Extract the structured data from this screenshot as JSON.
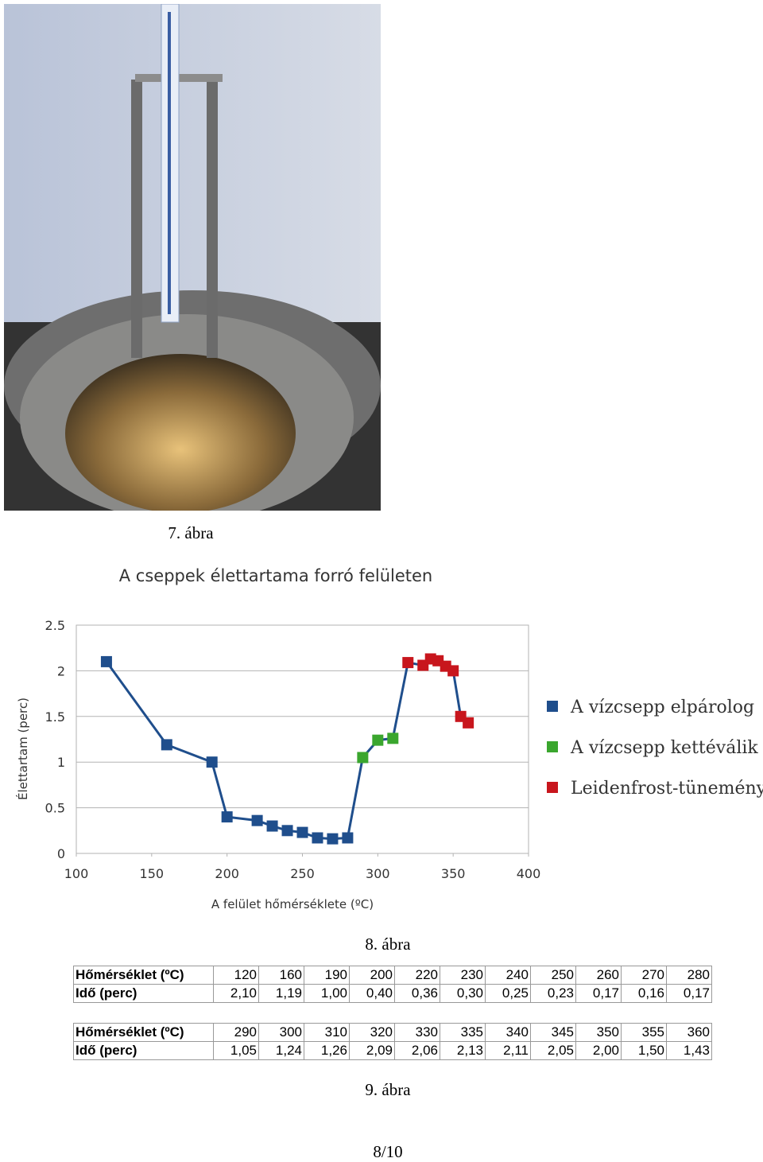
{
  "captions": {
    "figure7": "7. ábra",
    "figure8": "8. ábra",
    "figure9": "9. ábra"
  },
  "page_number": "8/10",
  "chart_data": {
    "type": "scatter",
    "title": "A cseppek élettartama forró felületen",
    "x_label": "A felület hőmérséklete (ºC)",
    "y_label": "Élettartam (perc)",
    "xlim": [
      100,
      400
    ],
    "xticks": [
      100,
      150,
      200,
      250,
      300,
      350,
      400
    ],
    "ylim": [
      0,
      2.5
    ],
    "yticks": [
      0,
      0.5,
      1,
      1.5,
      2,
      2.5
    ],
    "grid": true,
    "legend": "right",
    "line_color": "#1f4e8c",
    "series": [
      {
        "name": "A vízcsepp elpárolog",
        "color": "#1f4e8c",
        "x": [
          120,
          160,
          190,
          200,
          220,
          230,
          240,
          250,
          260,
          270,
          280
        ],
        "values": [
          2.1,
          1.19,
          1.0,
          0.4,
          0.36,
          0.3,
          0.25,
          0.23,
          0.17,
          0.16,
          0.17
        ]
      },
      {
        "name": "A vízcsepp kettéválik",
        "color": "#3aa62e",
        "x": [
          290,
          300,
          310
        ],
        "values": [
          1.05,
          1.24,
          1.26
        ]
      },
      {
        "name": "Leidenfrost-tünemény",
        "color": "#c8161d",
        "x": [
          320,
          330,
          335,
          340,
          345,
          350,
          355,
          360
        ],
        "values": [
          2.09,
          2.06,
          2.13,
          2.11,
          2.05,
          2.0,
          1.5,
          1.43
        ]
      }
    ]
  },
  "tables": [
    {
      "rows": [
        [
          "Hőmérséklet (ºC)",
          "120",
          "160",
          "190",
          "200",
          "220",
          "230",
          "240",
          "250",
          "260",
          "270",
          "280"
        ],
        [
          "Idő (perc)",
          "2,10",
          "1,19",
          "1,00",
          "0,40",
          "0,36",
          "0,30",
          "0,25",
          "0,23",
          "0,17",
          "0,16",
          "0,17"
        ]
      ]
    },
    {
      "rows": [
        [
          "Hőmérséklet (ºC)",
          "290",
          "300",
          "310",
          "320",
          "330",
          "335",
          "340",
          "345",
          "350",
          "355",
          "360"
        ],
        [
          "Idő (perc)",
          "1,05",
          "1,24",
          "1,26",
          "2,09",
          "2,06",
          "2,13",
          "2,11",
          "2,05",
          "2,00",
          "1,50",
          "1,43"
        ]
      ]
    }
  ]
}
